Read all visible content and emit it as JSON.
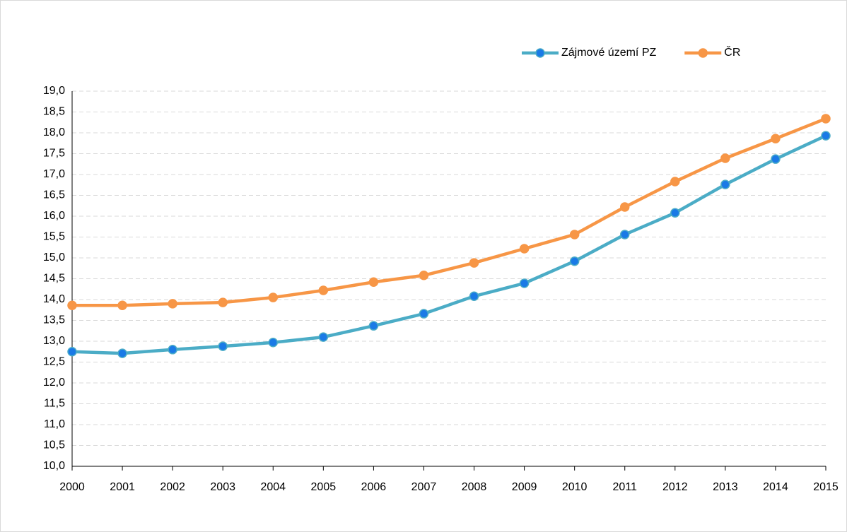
{
  "chart_data": {
    "type": "line",
    "categories": [
      "2000",
      "2001",
      "2002",
      "2003",
      "2004",
      "2005",
      "2006",
      "2007",
      "2008",
      "2009",
      "2010",
      "2011",
      "2012",
      "2013",
      "2014",
      "2015"
    ],
    "series": [
      {
        "name": "Zájmové území PZ",
        "color": "#4bacc6",
        "marker_color": "#1a7ae6",
        "values": [
          12.75,
          12.71,
          12.8,
          12.88,
          12.97,
          13.1,
          13.37,
          13.66,
          14.08,
          14.39,
          14.92,
          15.56,
          16.08,
          16.76,
          17.37,
          17.93
        ]
      },
      {
        "name": "ČR",
        "color": "#f79646",
        "marker_color": "#f79646",
        "values": [
          13.86,
          13.86,
          13.9,
          13.93,
          14.05,
          14.22,
          14.42,
          14.58,
          14.88,
          15.22,
          15.56,
          16.22,
          16.83,
          17.39,
          17.86,
          18.34
        ]
      }
    ],
    "ylim": [
      10,
      19
    ],
    "yticks": [
      {
        "value": 10,
        "label": "10,0"
      },
      {
        "value": 10.5,
        "label": "10,5"
      },
      {
        "value": 11,
        "label": "11,0"
      },
      {
        "value": 11.5,
        "label": "11,5"
      },
      {
        "value": 12,
        "label": "12,0"
      },
      {
        "value": 12.5,
        "label": "12,5"
      },
      {
        "value": 13,
        "label": "13,0"
      },
      {
        "value": 13.5,
        "label": "13,5"
      },
      {
        "value": 14,
        "label": "14,0"
      },
      {
        "value": 14.5,
        "label": "14,5"
      },
      {
        "value": 15,
        "label": "15,0"
      },
      {
        "value": 15.5,
        "label": "15,5"
      },
      {
        "value": 16,
        "label": "16,0"
      },
      {
        "value": 16.5,
        "label": "16,5"
      },
      {
        "value": 17,
        "label": "17,0"
      },
      {
        "value": 17.5,
        "label": "17,5"
      },
      {
        "value": 18,
        "label": "18,0"
      },
      {
        "value": 18.5,
        "label": "18,5"
      },
      {
        "value": 19,
        "label": "19,0"
      }
    ],
    "grid": true,
    "legend": "top-right"
  }
}
